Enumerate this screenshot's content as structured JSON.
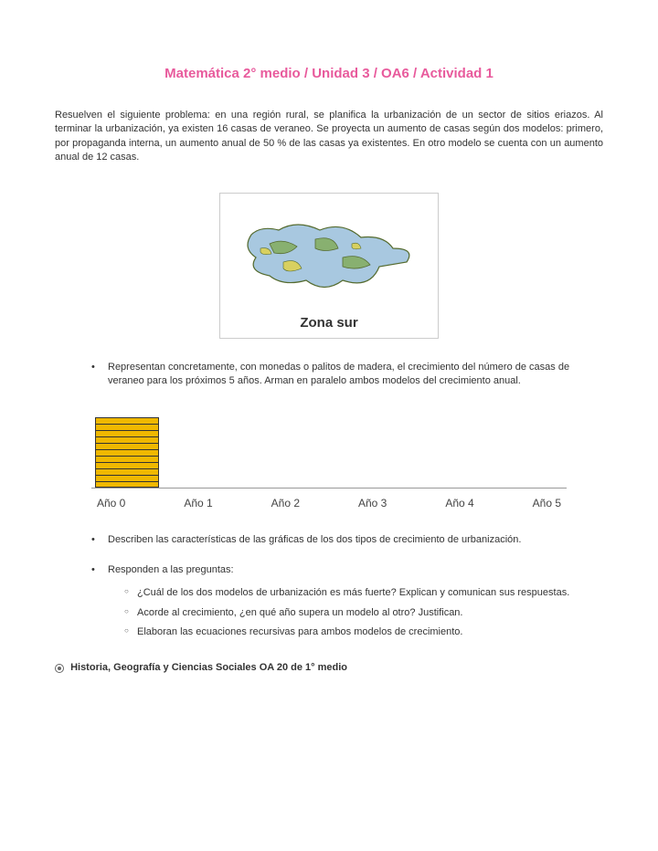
{
  "title": "Matemática 2° medio / Unidad 3 / OA6 / Actividad 1",
  "intro": "Resuelven el siguiente problema: en una región rural, se planifica la urbanización de un sector de sitios eriazos. Al terminar la urbanización, ya existen 16 casas de veraneo. Se proyecta un aumento de casas según dos modelos: primero, por propaganda interna, un aumento anual de 50 % de las casas ya existentes. En otro modelo se cuenta con un aumento anual de 12 casas.",
  "map": {
    "label": "Zona sur",
    "colors": {
      "water": "#a8c8e0",
      "land1": "#88b070",
      "land2": "#d8d060",
      "outline": "#556b2f"
    }
  },
  "bullets": {
    "b1": "Representan concretamente, con monedas o palitos de madera, el crecimiento del número de casas de veraneo para los próximos 5 años. Arman en paralelo ambos modelos del crecimiento anual.",
    "b2": "Describen las características de las gráficas de los dos tipos de crecimiento de urbanización.",
    "b3": "Responden a las preguntas:",
    "sub": {
      "s1": "¿Cuál de los dos modelos de urbanización es más fuerte? Explican y comunican sus respuestas.",
      "s2": "Acorde al crecimiento, ¿en qué año supera un modelo al otro? Justifican.",
      "s3": "Elaboran las ecuaciones recursivas para ambos modelos de crecimiento."
    }
  },
  "chart": {
    "type": "bar",
    "year_labels": [
      "Año 0",
      "Año 1",
      "Año 2",
      "Año 3",
      "Año 4",
      "Año 5"
    ],
    "visible_stack_segments": 11,
    "bar_color": "#f0b800",
    "segment_border_color": "#333333",
    "axis_color": "#999999",
    "label_fontsize": 12
  },
  "related": "Historia, Geografía y Ciencias Sociales OA 20 de 1° medio"
}
